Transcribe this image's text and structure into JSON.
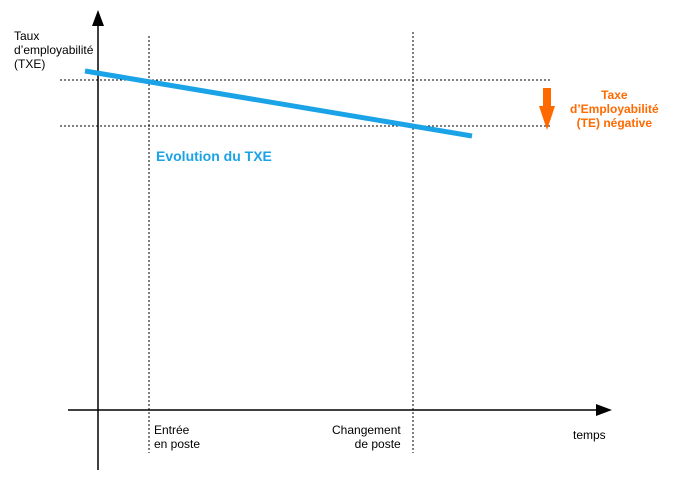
{
  "colors": {
    "axis": "#000000",
    "guide": "#000000",
    "series": "#1aa3e6",
    "annotation": "#ff6a00"
  },
  "y_axis": {
    "label_lines": [
      "Taux",
      "d’employabilité",
      "(TXE)"
    ]
  },
  "x_axis": {
    "label": "temps"
  },
  "ticks": [
    {
      "lines": [
        "Entrée",
        "en poste"
      ]
    },
    {
      "lines": [
        "Changement",
        "de poste"
      ]
    }
  ],
  "series": {
    "label": "Evolution du TXE"
  },
  "annotation": {
    "lines": [
      "Taxe",
      "d’Employabilité",
      "(TE) négative"
    ],
    "icon": "down-arrow-icon"
  }
}
